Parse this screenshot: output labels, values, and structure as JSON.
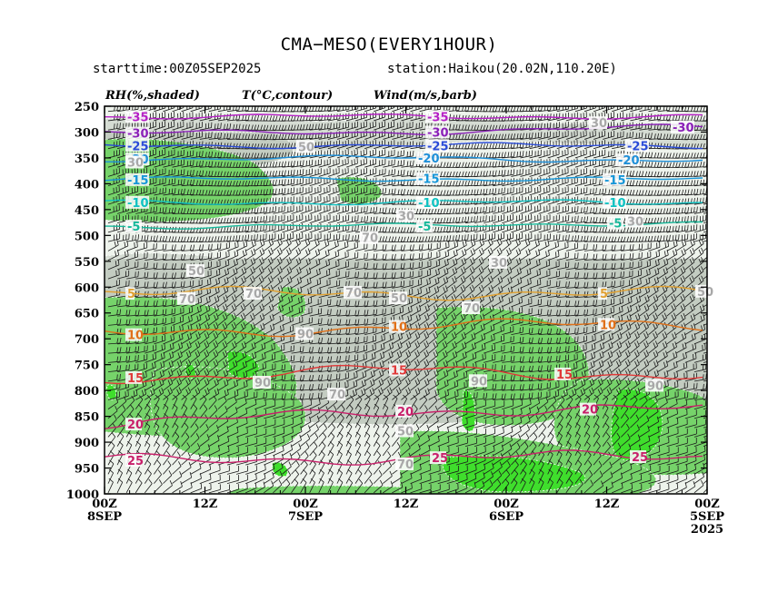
{
  "title": "CMA−MESO(EVERY1HOUR)",
  "starttime": "starttime:00Z05SEP2025",
  "station": "station:Haikou(20.02N,110.20E)",
  "chart_data": {
    "type": "heatmap",
    "rh_label": "RH(%,shaded)",
    "t_label": "T(°C,contour)",
    "wind_label": "Wind(m/s,barb)",
    "y_axis": {
      "scale": "pressure",
      "range": [
        1000,
        250
      ],
      "ticks": [
        "250",
        "300",
        "350",
        "400",
        "450",
        "500",
        "550",
        "600",
        "650",
        "700",
        "750",
        "800",
        "850",
        "900",
        "950",
        "1000"
      ]
    },
    "x_axis": {
      "direction": "reversed",
      "ticks": [
        {
          "top": "00Z",
          "bottom": "8SEP",
          "extra": ""
        },
        {
          "top": "12Z",
          "bottom": "",
          "extra": ""
        },
        {
          "top": "00Z",
          "bottom": "7SEP",
          "extra": ""
        },
        {
          "top": "12Z",
          "bottom": "",
          "extra": ""
        },
        {
          "top": "00Z",
          "bottom": "6SEP",
          "extra": ""
        },
        {
          "top": "12Z",
          "bottom": "",
          "extra": ""
        },
        {
          "top": "00Z",
          "bottom": "5SEP",
          "extra": "2025"
        }
      ]
    },
    "rh_levels": [
      {
        "min": 0,
        "max": 30,
        "color": "#ffffff"
      },
      {
        "min": 30,
        "max": 50,
        "color": "#eef3ec"
      },
      {
        "min": 50,
        "max": 70,
        "color": "#d5dcd3"
      },
      {
        "min": 70,
        "max": 90,
        "color": "#c3ccc1"
      },
      {
        "min": 90,
        "max": 95,
        "color": "#76d36a"
      },
      {
        "min": 95,
        "max": 100,
        "color": "#3fde2c"
      }
    ],
    "temperature_contours": [
      {
        "value": -35,
        "color": "#b51fc5",
        "labels": [
          [
            140,
            270
          ],
          [
            470,
            270
          ]
        ]
      },
      {
        "value": -30,
        "color": "#8a1fb8",
        "labels": [
          [
            140,
            302
          ],
          [
            470,
            300
          ],
          [
            740,
            290
          ]
        ]
      },
      {
        "value": -25,
        "color": "#2a4bd8",
        "labels": [
          [
            140,
            326
          ],
          [
            470,
            326
          ],
          [
            690,
            326
          ]
        ]
      },
      {
        "value": -20,
        "color": "#1e8fd8",
        "labels": [
          [
            140,
            352
          ],
          [
            460,
            350
          ],
          [
            680,
            354
          ]
        ]
      },
      {
        "value": -15,
        "color": "#1596d8",
        "labels": [
          [
            140,
            392
          ],
          [
            460,
            390
          ],
          [
            665,
            392
          ]
        ]
      },
      {
        "value": -10,
        "color": "#0ec2c2",
        "labels": [
          [
            140,
            436
          ],
          [
            460,
            436
          ],
          [
            665,
            436
          ]
        ]
      },
      {
        "value": -5,
        "color": "#16b89a",
        "labels": [
          [
            140,
            482
          ],
          [
            460,
            482
          ],
          [
            670,
            476
          ]
        ]
      },
      {
        "value": 5,
        "color": "#e0a030",
        "labels": [
          [
            140,
            612
          ],
          [
            660,
            612
          ]
        ]
      },
      {
        "value": 10,
        "color": "#e07018",
        "labels": [
          [
            140,
            692
          ],
          [
            430,
            676
          ],
          [
            660,
            672
          ]
        ]
      },
      {
        "value": 15,
        "color": "#e03838",
        "labels": [
          [
            140,
            775
          ],
          [
            430,
            760
          ],
          [
            612,
            768
          ]
        ]
      },
      {
        "value": 20,
        "color": "#c8206a",
        "labels": [
          [
            140,
            865
          ],
          [
            437,
            840
          ],
          [
            640,
            836
          ]
        ]
      },
      {
        "value": 25,
        "color": "#c8206a",
        "labels": [
          [
            140,
            935
          ],
          [
            475,
            930
          ],
          [
            695,
            928
          ]
        ]
      }
    ],
    "rh_labels": [
      {
        "text": "30",
        "x": 140,
        "p": 358
      },
      {
        "text": "30",
        "x": 650,
        "p": 282
      },
      {
        "text": "50",
        "x": 328,
        "p": 328
      },
      {
        "text": "30",
        "x": 438,
        "p": 462
      },
      {
        "text": "30",
        "x": 690,
        "p": 472
      },
      {
        "text": "70",
        "x": 398,
        "p": 504
      },
      {
        "text": "50",
        "x": 207,
        "p": 568
      },
      {
        "text": "30",
        "x": 540,
        "p": 552
      },
      {
        "text": "50",
        "x": 767,
        "p": 608
      },
      {
        "text": "70",
        "x": 197,
        "p": 622
      },
      {
        "text": "70",
        "x": 270,
        "p": 612
      },
      {
        "text": "70",
        "x": 380,
        "p": 610
      },
      {
        "text": "50",
        "x": 430,
        "p": 621
      },
      {
        "text": "70",
        "x": 510,
        "p": 640
      },
      {
        "text": "90",
        "x": 327,
        "p": 690
      },
      {
        "text": "90",
        "x": 280,
        "p": 784
      },
      {
        "text": "70",
        "x": 362,
        "p": 807
      },
      {
        "text": "90",
        "x": 518,
        "p": 781
      },
      {
        "text": "90",
        "x": 712,
        "p": 790
      },
      {
        "text": "50",
        "x": 437,
        "p": 878
      },
      {
        "text": "70",
        "x": 437,
        "p": 942
      }
    ]
  }
}
